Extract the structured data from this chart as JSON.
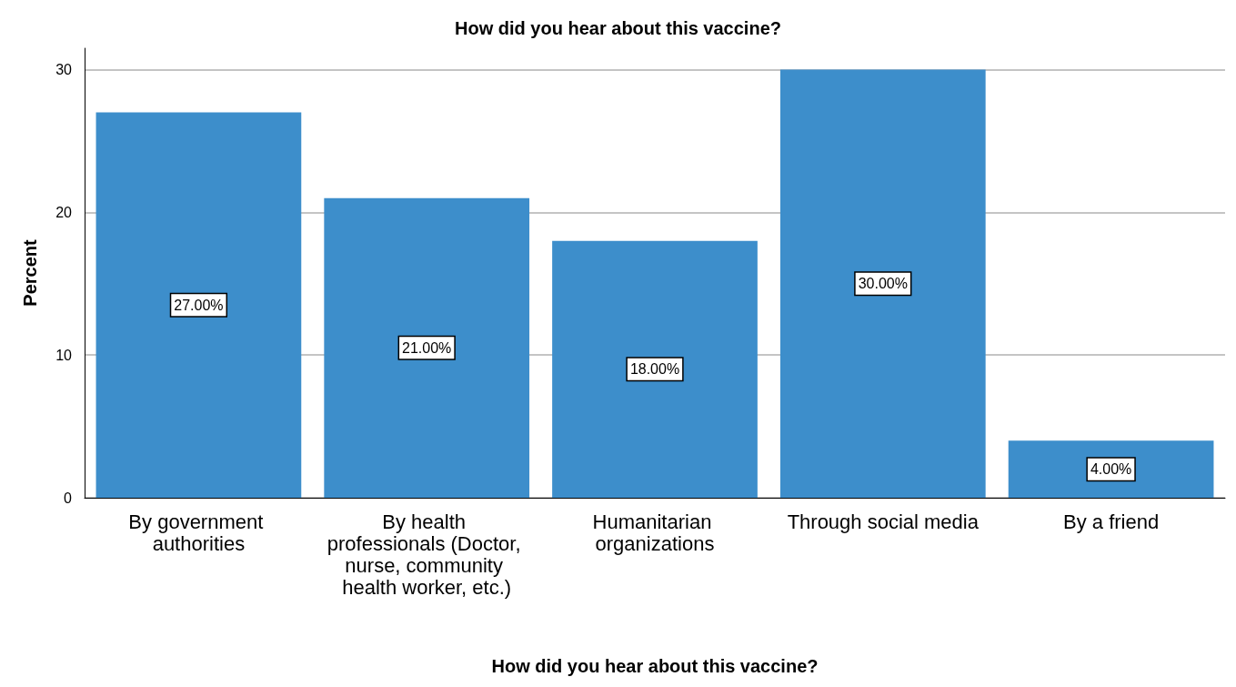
{
  "chart_data": {
    "type": "bar",
    "title": "How did you hear about this vaccine?",
    "xlabel": "How did you hear about this vaccine?",
    "ylabel": "Percent",
    "categories": [
      "By government authorities",
      "By health professionals (Doctor, nurse, community health worker, etc.)",
      "Humanitarian organizations",
      "Through social media",
      "By a friend"
    ],
    "values": [
      27,
      21,
      18,
      30,
      4
    ],
    "value_labels": [
      "27.00%",
      "21.00%",
      "18.00%",
      "30.00%",
      "4.00%"
    ],
    "color": "#3d8ecb",
    "ylim": [
      0,
      31.5
    ],
    "yticks": [
      0,
      10,
      20,
      30
    ],
    "grid": "y"
  }
}
